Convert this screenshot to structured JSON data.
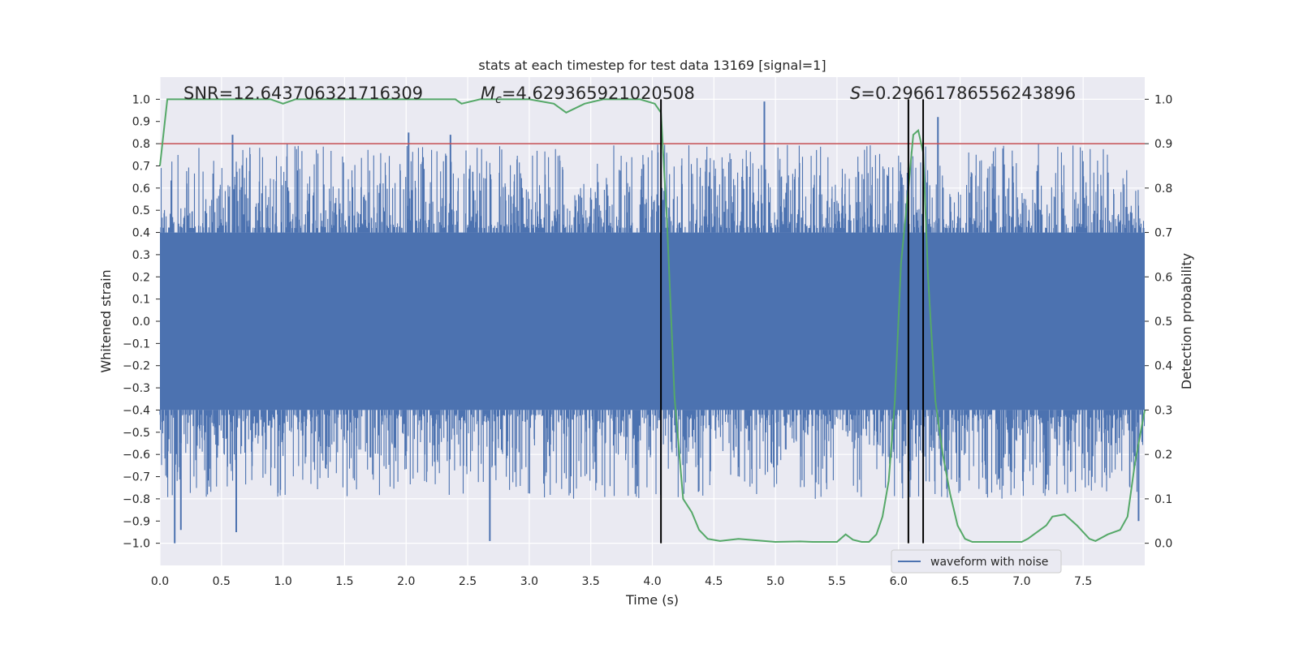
{
  "chart_data": {
    "type": "line",
    "title": "stats at each timestep for test data 13169 [signal=1]",
    "xlabel": "Time (s)",
    "ylabel": "Whitened strain",
    "y2label": "Detection probability",
    "xlim": [
      0.0,
      8.0
    ],
    "ylim": [
      -1.1,
      1.1
    ],
    "y2lim": [
      -0.05,
      1.05
    ],
    "xticks": [
      0.0,
      0.5,
      1.0,
      1.5,
      2.0,
      2.5,
      3.0,
      3.5,
      4.0,
      4.5,
      5.0,
      5.5,
      6.0,
      6.5,
      7.0,
      7.5
    ],
    "xtick_labels": [
      "0.0",
      "0.5",
      "1.0",
      "1.5",
      "2.0",
      "2.5",
      "3.0",
      "3.5",
      "4.0",
      "4.5",
      "5.0",
      "5.5",
      "6.0",
      "6.5",
      "7.0",
      "7.5"
    ],
    "yticks": [
      1.0,
      0.9,
      0.8,
      0.7,
      0.6,
      0.5,
      0.4,
      0.3,
      0.2,
      0.1,
      0.0,
      -0.1,
      -0.2,
      -0.3,
      -0.4,
      -0.5,
      -0.6,
      -0.7,
      -0.8,
      -0.9,
      -1.0
    ],
    "ytick_labels": [
      "1.0",
      "0.9",
      "0.8",
      "0.7",
      "0.6",
      "0.5",
      "0.4",
      "0.3",
      "0.2",
      "0.1",
      "0.0",
      "−0.1",
      "−0.2",
      "−0.3",
      "−0.4",
      "−0.5",
      "−0.6",
      "−0.7",
      "−0.8",
      "−0.9",
      "−1.0"
    ],
    "y2ticks": [
      1.0,
      0.9,
      0.8,
      0.7,
      0.6,
      0.5,
      0.4,
      0.3,
      0.2,
      0.1,
      0.0
    ],
    "y2tick_labels": [
      "1.0",
      "0.9",
      "0.8",
      "0.7",
      "0.6",
      "0.5",
      "0.4",
      "0.3",
      "0.2",
      "0.1",
      "0.0"
    ],
    "grid": true,
    "legend": {
      "placement": "lower-right",
      "entries": [
        "waveform with noise"
      ]
    },
    "annotations": {
      "snr": "SNR=12.643706321716309",
      "mc_prefix": "M",
      "mc_sub": "c",
      "mc_value": "=4.629365921020508",
      "s_prefix": "S",
      "s_value": "=0.29661786556243896"
    },
    "threshold_line": {
      "y2": 0.9,
      "color": "#c44e52"
    },
    "vertical_lines": [
      4.07,
      6.08,
      6.2
    ],
    "waveform_series": {
      "name": "waveform with noise",
      "color": "#4c72b0",
      "x_range": [
        0.0,
        8.0
      ],
      "envelope_peaks": [
        {
          "x": 0.12,
          "y": -1.0
        },
        {
          "x": 0.17,
          "y": -0.94
        },
        {
          "x": 0.59,
          "y": 0.84
        },
        {
          "x": 0.62,
          "y": -0.95
        },
        {
          "x": 2.02,
          "y": 0.85
        },
        {
          "x": 2.36,
          "y": 0.84
        },
        {
          "x": 2.68,
          "y": -0.99
        },
        {
          "x": 4.91,
          "y": 0.99
        },
        {
          "x": 6.32,
          "y": 0.92
        },
        {
          "x": 6.2,
          "y": 0.63
        },
        {
          "x": 7.95,
          "y": -0.9
        }
      ],
      "typical_band": [
        -0.4,
        0.4
      ]
    },
    "detection_series": {
      "color": "#55a868",
      "x": [
        0.0,
        0.06,
        0.1,
        0.3,
        0.6,
        0.9,
        1.0,
        1.1,
        1.4,
        1.8,
        2.2,
        2.4,
        2.45,
        2.6,
        3.0,
        3.2,
        3.3,
        3.45,
        3.6,
        3.9,
        4.02,
        4.07,
        4.12,
        4.18,
        4.25,
        4.32,
        4.38,
        4.45,
        4.55,
        4.7,
        5.0,
        5.2,
        5.3,
        5.5,
        5.57,
        5.63,
        5.7,
        5.76,
        5.82,
        5.87,
        5.92,
        5.97,
        6.02,
        6.08,
        6.12,
        6.16,
        6.2,
        6.24,
        6.3,
        6.36,
        6.42,
        6.48,
        6.54,
        6.6,
        6.8,
        7.0,
        7.05,
        7.1,
        7.2,
        7.25,
        7.35,
        7.45,
        7.55,
        7.6,
        7.7,
        7.8,
        7.86,
        7.92,
        8.0
      ],
      "y": [
        0.85,
        1.0,
        1.0,
        1.0,
        1.0,
        1.0,
        0.99,
        1.0,
        1.0,
        1.0,
        1.0,
        1.0,
        0.99,
        1.0,
        1.0,
        0.99,
        0.97,
        0.99,
        1.0,
        1.0,
        0.99,
        0.97,
        0.72,
        0.33,
        0.1,
        0.07,
        0.03,
        0.01,
        0.005,
        0.01,
        0.003,
        0.004,
        0.003,
        0.003,
        0.02,
        0.008,
        0.003,
        0.003,
        0.02,
        0.06,
        0.14,
        0.32,
        0.63,
        0.8,
        0.92,
        0.93,
        0.88,
        0.6,
        0.32,
        0.2,
        0.11,
        0.04,
        0.01,
        0.003,
        0.003,
        0.003,
        0.01,
        0.02,
        0.04,
        0.06,
        0.065,
        0.04,
        0.01,
        0.005,
        0.02,
        0.03,
        0.06,
        0.18,
        0.3
      ]
    }
  }
}
